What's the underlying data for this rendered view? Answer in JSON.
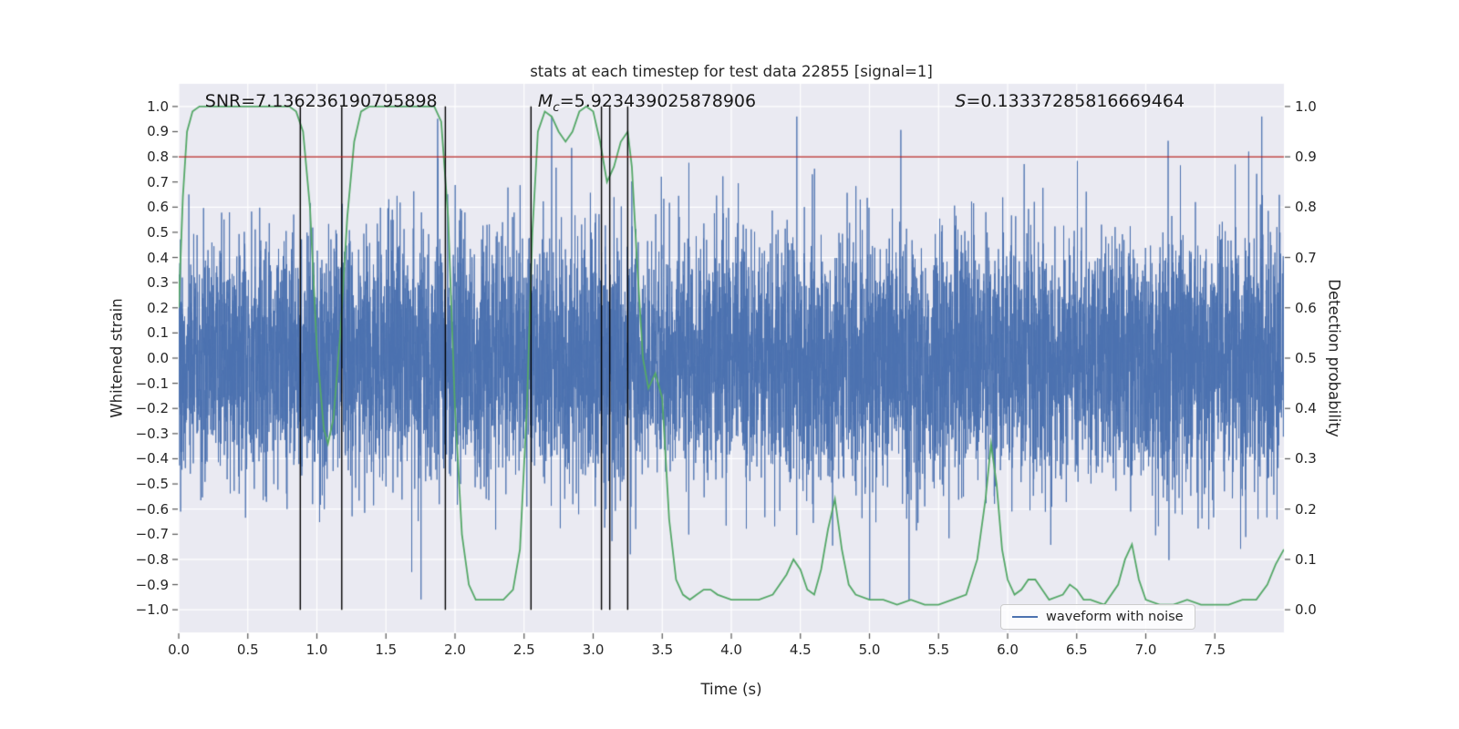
{
  "figure": {
    "bg": "#ffffff",
    "axes_bg": "#eaeaf2",
    "grid_color": "#ffffff",
    "tick_mark_color": "#555555",
    "text_color": "#262626"
  },
  "chart_data": {
    "type": "line",
    "title": "stats at each timestep for test data 22855 [signal=1]",
    "xlabel": "Time (s)",
    "ylabel_left": "Whitened strain",
    "ylabel_right": "Detection probability",
    "xlim": [
      0,
      8
    ],
    "ylim_left": [
      -1.09,
      1.09
    ],
    "ylim_right": [
      -0.045,
      1.045
    ],
    "grid": true,
    "legend_position": "lower right",
    "x_ticks": [
      {
        "v": 0.0,
        "label": "0.0"
      },
      {
        "v": 0.5,
        "label": "0.5"
      },
      {
        "v": 1.0,
        "label": "1.0"
      },
      {
        "v": 1.5,
        "label": "1.5"
      },
      {
        "v": 2.0,
        "label": "2.0"
      },
      {
        "v": 2.5,
        "label": "2.5"
      },
      {
        "v": 3.0,
        "label": "3.0"
      },
      {
        "v": 3.5,
        "label": "3.5"
      },
      {
        "v": 4.0,
        "label": "4.0"
      },
      {
        "v": 4.5,
        "label": "4.5"
      },
      {
        "v": 5.0,
        "label": "5.0"
      },
      {
        "v": 5.5,
        "label": "5.5"
      },
      {
        "v": 6.0,
        "label": "6.0"
      },
      {
        "v": 6.5,
        "label": "6.5"
      },
      {
        "v": 7.0,
        "label": "7.0"
      },
      {
        "v": 7.5,
        "label": "7.5"
      }
    ],
    "left_ticks": [
      {
        "v": 1.0,
        "label": "1.0"
      },
      {
        "v": 0.9,
        "label": "0.9"
      },
      {
        "v": 0.8,
        "label": "0.8"
      },
      {
        "v": 0.7,
        "label": "0.7"
      },
      {
        "v": 0.6,
        "label": "0.6"
      },
      {
        "v": 0.5,
        "label": "0.5"
      },
      {
        "v": 0.4,
        "label": "0.4"
      },
      {
        "v": 0.3,
        "label": "0.3"
      },
      {
        "v": 0.2,
        "label": "0.2"
      },
      {
        "v": 0.1,
        "label": "0.1"
      },
      {
        "v": 0.0,
        "label": "0.0"
      },
      {
        "v": -0.1,
        "label": "−0.1"
      },
      {
        "v": -0.2,
        "label": "−0.2"
      },
      {
        "v": -0.3,
        "label": "−0.3"
      },
      {
        "v": -0.4,
        "label": "−0.4"
      },
      {
        "v": -0.5,
        "label": "−0.5"
      },
      {
        "v": -0.6,
        "label": "−0.6"
      },
      {
        "v": -0.7,
        "label": "−0.7"
      },
      {
        "v": -0.8,
        "label": "−0.8"
      },
      {
        "v": -0.9,
        "label": "−0.9"
      },
      {
        "v": -1.0,
        "label": "−1.0"
      }
    ],
    "right_ticks": [
      {
        "v": 1.0,
        "label": "1.0"
      },
      {
        "v": 0.9,
        "label": "0.9"
      },
      {
        "v": 0.8,
        "label": "0.8"
      },
      {
        "v": 0.7,
        "label": "0.7"
      },
      {
        "v": 0.6,
        "label": "0.6"
      },
      {
        "v": 0.5,
        "label": "0.5"
      },
      {
        "v": 0.4,
        "label": "0.4"
      },
      {
        "v": 0.3,
        "label": "0.3"
      },
      {
        "v": 0.2,
        "label": "0.2"
      },
      {
        "v": 0.1,
        "label": "0.1"
      },
      {
        "v": 0.0,
        "label": "0.0"
      }
    ],
    "grid_y_left": [
      -1.0,
      -0.8,
      -0.6,
      -0.4,
      -0.2,
      0.0,
      0.2,
      0.4,
      0.6,
      0.8,
      1.0
    ],
    "annotations": [
      {
        "x": 0.19,
        "y_left": 1.02,
        "segments": [
          {
            "t": "SNR=7.136236190795898"
          }
        ]
      },
      {
        "x": 2.6,
        "y_left": 1.02,
        "segments": [
          {
            "t": "M",
            "it": true
          },
          {
            "t": "c",
            "sub": true
          },
          {
            "t": "=5.923439025878906"
          }
        ]
      },
      {
        "x": 5.62,
        "y_left": 1.02,
        "segments": [
          {
            "t": "S",
            "it": true
          },
          {
            "t": "=0.13337285816669464"
          }
        ]
      }
    ],
    "threshold_line": {
      "y_right": 0.9,
      "color": "#b22222"
    },
    "event_lines_x": [
      0.88,
      1.18,
      1.93,
      2.55,
      3.06,
      3.12,
      3.25
    ],
    "event_lines_color": "#000000",
    "event_lines_y_span_left": [
      -1.0,
      1.0
    ],
    "series": [
      {
        "name": "waveform with noise",
        "kind": "noise_waveform",
        "color": "#4c72b0",
        "n": 8192,
        "seed": 22855,
        "sigma": 0.24,
        "spike_prob": 0.005,
        "clip": 0.96,
        "in_legend": true
      },
      {
        "name": "detection probability",
        "kind": "line",
        "color": "#55a868",
        "in_legend": false,
        "x": [
          0,
          0.03,
          0.06,
          0.1,
          0.15,
          0.3,
          0.5,
          0.7,
          0.8,
          0.85,
          0.9,
          0.95,
          1.0,
          1.05,
          1.08,
          1.12,
          1.17,
          1.22,
          1.27,
          1.32,
          1.38,
          1.55,
          1.75,
          1.85,
          1.9,
          1.95,
          2.0,
          2.05,
          2.1,
          2.15,
          2.25,
          2.35,
          2.42,
          2.47,
          2.52,
          2.56,
          2.6,
          2.65,
          2.7,
          2.75,
          2.8,
          2.85,
          2.9,
          2.95,
          3.0,
          3.05,
          3.1,
          3.15,
          3.2,
          3.25,
          3.28,
          3.32,
          3.36,
          3.4,
          3.45,
          3.5,
          3.55,
          3.6,
          3.65,
          3.7,
          3.75,
          3.8,
          3.85,
          3.9,
          4.0,
          4.1,
          4.2,
          4.3,
          4.4,
          4.45,
          4.5,
          4.55,
          4.6,
          4.65,
          4.7,
          4.75,
          4.8,
          4.85,
          4.9,
          5.0,
          5.1,
          5.2,
          5.3,
          5.4,
          5.5,
          5.6,
          5.7,
          5.78,
          5.84,
          5.88,
          5.92,
          5.96,
          6.0,
          6.05,
          6.1,
          6.15,
          6.2,
          6.25,
          6.3,
          6.4,
          6.45,
          6.5,
          6.55,
          6.6,
          6.7,
          6.8,
          6.85,
          6.9,
          6.95,
          7.0,
          7.1,
          7.2,
          7.3,
          7.4,
          7.5,
          7.6,
          7.7,
          7.8,
          7.88,
          7.94,
          8.0
        ],
        "y_right": [
          0.6,
          0.82,
          0.95,
          0.99,
          1.0,
          1.0,
          1.0,
          1.0,
          1.0,
          0.99,
          0.95,
          0.8,
          0.52,
          0.36,
          0.33,
          0.38,
          0.55,
          0.78,
          0.93,
          0.99,
          1.0,
          1.0,
          1.0,
          1.0,
          0.97,
          0.78,
          0.4,
          0.15,
          0.05,
          0.02,
          0.02,
          0.02,
          0.04,
          0.12,
          0.4,
          0.75,
          0.95,
          0.99,
          0.98,
          0.95,
          0.93,
          0.95,
          0.99,
          1.0,
          0.99,
          0.93,
          0.85,
          0.88,
          0.93,
          0.95,
          0.88,
          0.68,
          0.5,
          0.44,
          0.47,
          0.42,
          0.18,
          0.06,
          0.03,
          0.02,
          0.03,
          0.04,
          0.04,
          0.03,
          0.02,
          0.02,
          0.02,
          0.03,
          0.07,
          0.1,
          0.08,
          0.04,
          0.03,
          0.08,
          0.16,
          0.22,
          0.12,
          0.05,
          0.03,
          0.02,
          0.02,
          0.01,
          0.02,
          0.01,
          0.01,
          0.02,
          0.03,
          0.1,
          0.22,
          0.33,
          0.25,
          0.12,
          0.06,
          0.03,
          0.04,
          0.06,
          0.06,
          0.04,
          0.02,
          0.03,
          0.05,
          0.04,
          0.02,
          0.02,
          0.01,
          0.05,
          0.1,
          0.13,
          0.06,
          0.02,
          0.01,
          0.01,
          0.02,
          0.01,
          0.01,
          0.01,
          0.02,
          0.02,
          0.05,
          0.09,
          0.12
        ]
      }
    ],
    "legend": {
      "label": "waveform with noise",
      "color": "#4c72b0"
    }
  }
}
